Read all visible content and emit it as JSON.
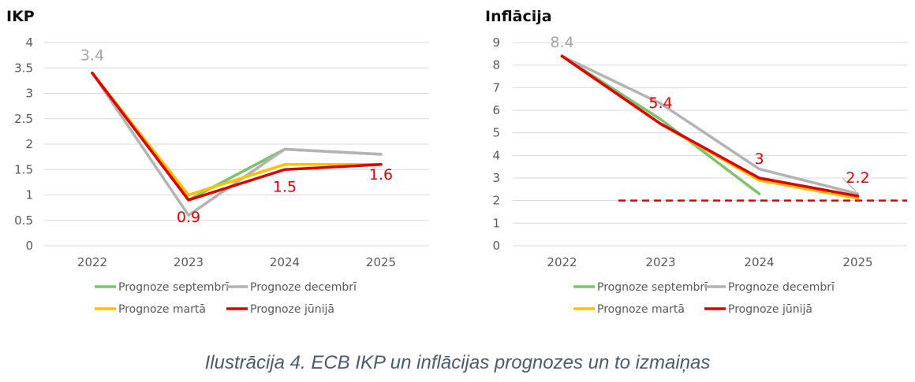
{
  "caption": "Ilustrācija 4. ECB IKP un inflācijas prognozes un to izmaiņas",
  "chart_data": [
    {
      "type": "line",
      "title": "IKP",
      "categories": [
        "2022",
        "2023",
        "2024",
        "2025"
      ],
      "ylim": [
        0,
        4
      ],
      "yticks": [
        "0",
        "0.5",
        "1",
        "1.5",
        "2",
        "2.5",
        "3",
        "3.5",
        "4"
      ],
      "grid": true,
      "legend": "bottom",
      "series": [
        {
          "name": "Prognoze septembrī",
          "color": "#7cc36e",
          "values": [
            3.4,
            0.9,
            1.9,
            1.8
          ]
        },
        {
          "name": "Prognoze decembrī",
          "color": "#b3b3b3",
          "values": [
            3.4,
            0.6,
            1.9,
            1.8
          ]
        },
        {
          "name": "Prognoze martā",
          "color": "#ffc000",
          "values": [
            3.4,
            1.0,
            1.6,
            1.6
          ]
        },
        {
          "name": "Prognoze jūnijā",
          "color": "#e00000",
          "values": [
            3.4,
            0.9,
            1.5,
            1.6
          ]
        }
      ],
      "annotations": [
        {
          "text": "3.4",
          "color": "#a6a6a6",
          "x": "2022",
          "y": 3.4
        },
        {
          "text": "0.9",
          "color": "#e00000",
          "x": "2023",
          "y": 0.9
        },
        {
          "text": "1.5",
          "color": "#e00000",
          "x": "2024",
          "y": 1.5
        },
        {
          "text": "1.6",
          "color": "#e00000",
          "x": "2025",
          "y": 1.6
        }
      ]
    },
    {
      "type": "line",
      "title": "Inflācija",
      "categories": [
        "2022",
        "2023",
        "2024",
        "2025"
      ],
      "ylim": [
        0,
        9
      ],
      "yticks": [
        "0",
        "1",
        "2",
        "3",
        "4",
        "5",
        "6",
        "7",
        "8",
        "9"
      ],
      "grid": true,
      "legend": "bottom",
      "reference_line": {
        "y": 2,
        "color": "#e00000",
        "style": "dashed"
      },
      "series": [
        {
          "name": "Prognoze septembrī",
          "color": "#7cc36e",
          "values": [
            8.4,
            5.6,
            2.3,
            null
          ]
        },
        {
          "name": "Prognoze decembrī",
          "color": "#b3b3b3",
          "values": [
            8.4,
            6.3,
            3.4,
            2.3
          ]
        },
        {
          "name": "Prognoze martā",
          "color": "#ffc000",
          "values": [
            8.4,
            5.4,
            2.9,
            2.1
          ]
        },
        {
          "name": "Prognoze jūnijā",
          "color": "#e00000",
          "values": [
            8.4,
            5.4,
            3.0,
            2.2
          ]
        }
      ],
      "annotations": [
        {
          "text": "8.4",
          "color": "#a6a6a6",
          "x": "2022",
          "y": 8.4
        },
        {
          "text": "5.4",
          "color": "#e00000",
          "x": "2023",
          "y": 5.4
        },
        {
          "text": "3",
          "color": "#e00000",
          "x": "2024",
          "y": 3.0
        },
        {
          "text": "2.2",
          "color": "#e00000",
          "x": "2025",
          "y": 2.2
        }
      ]
    }
  ]
}
